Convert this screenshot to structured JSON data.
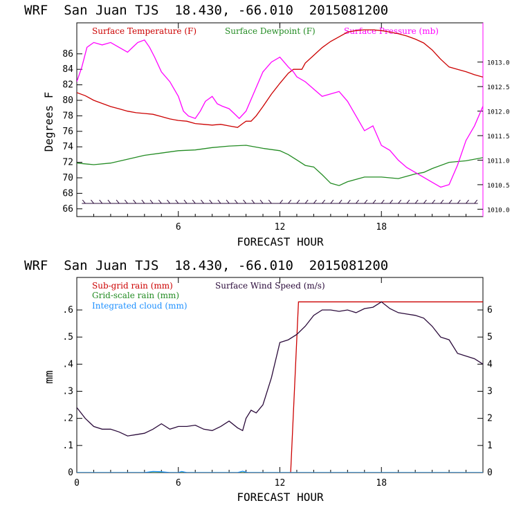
{
  "chart_data": [
    {
      "type": "line",
      "title": "WRF  San Juan TJS  18.430, -66.010  2015081200",
      "xlabel": "FORECAST HOUR",
      "ylabel": "Degrees F",
      "xlim": [
        0,
        24
      ],
      "ylim": [
        65,
        90
      ],
      "y2lim": [
        1009.85,
        1013.8
      ],
      "xticks": [
        6,
        12,
        18
      ],
      "xtick_labels": [
        "6",
        "12",
        "18"
      ],
      "yticks": [
        66,
        68,
        70,
        72,
        74,
        76,
        78,
        80,
        82,
        84,
        86
      ],
      "ytick_labels": [
        "66",
        "68",
        "70",
        "72",
        "74",
        "76",
        "78",
        "80",
        "82",
        "84",
        "86"
      ],
      "y2ticks": [
        1010.0,
        1010.5,
        1011.0,
        1011.5,
        1012.0,
        1012.5,
        1013.0
      ],
      "y2tick_labels": [
        "1010.0",
        "1010.5",
        "1011.0",
        "1011.5",
        "1012.0",
        "1012.5",
        "1013.0"
      ],
      "legend_placement": "top-left",
      "colors": {
        "temperature": "#cc0000",
        "dewpoint": "#228b22",
        "pressure": "#ff00ff",
        "wind_barbs": "#2a0a3a"
      },
      "wind_barbs": {
        "y": 66.7
      },
      "series": [
        {
          "name": "Surface Temperature (F)",
          "axis": "left",
          "color": "#cc0000",
          "x": [
            0,
            0.5,
            1,
            1.5,
            2,
            2.5,
            3,
            3.5,
            4,
            4.5,
            5,
            5.5,
            6,
            6.5,
            7,
            7.5,
            8,
            8.5,
            9,
            9.5,
            9.8,
            10,
            10.3,
            10.6,
            11,
            11.5,
            12,
            12.5,
            12.8,
            13,
            13.3,
            13.5,
            14,
            14.5,
            15,
            15.5,
            16,
            16.5,
            17,
            17.5,
            18,
            18.5,
            19,
            19.5,
            20,
            20.5,
            21,
            21.5,
            22,
            22.5,
            23,
            23.5,
            24
          ],
          "values": [
            81.0,
            80.6,
            80.0,
            79.6,
            79.2,
            78.9,
            78.6,
            78.4,
            78.3,
            78.2,
            77.9,
            77.6,
            77.4,
            77.3,
            77.0,
            76.9,
            76.8,
            76.9,
            76.7,
            76.5,
            77.0,
            77.3,
            77.3,
            78.0,
            79.2,
            80.8,
            82.2,
            83.5,
            84.0,
            84.0,
            84.0,
            84.8,
            85.8,
            86.8,
            87.6,
            88.2,
            88.8,
            89.0,
            89.1,
            89.1,
            89.0,
            88.8,
            88.6,
            88.3,
            87.9,
            87.4,
            86.5,
            85.3,
            84.3,
            84.0,
            83.7,
            83.3,
            83.0
          ]
        },
        {
          "name": "Surface Dewpoint (F)",
          "axis": "left",
          "color": "#228b22",
          "x": [
            0,
            1,
            2,
            3,
            4,
            5,
            6,
            7,
            8,
            9,
            10,
            11,
            12,
            12.5,
            13,
            13.5,
            14,
            14.5,
            15,
            15.5,
            16,
            17,
            18,
            19,
            20,
            20.5,
            21,
            22,
            23,
            24
          ],
          "values": [
            71.9,
            71.7,
            71.9,
            72.4,
            72.9,
            73.2,
            73.5,
            73.6,
            73.9,
            74.1,
            74.2,
            73.8,
            73.5,
            73.0,
            72.3,
            71.6,
            71.4,
            70.4,
            69.3,
            69.0,
            69.5,
            70.1,
            70.1,
            69.9,
            70.5,
            70.7,
            71.2,
            72.0,
            72.2,
            72.6
          ]
        },
        {
          "name": "Surface Pressure (mb)",
          "axis": "right",
          "color": "#ff00ff",
          "x": [
            0,
            0.3,
            0.6,
            1,
            1.5,
            2,
            2.5,
            3,
            3.3,
            3.6,
            4,
            4.3,
            4.6,
            5,
            5.5,
            6,
            6.3,
            6.6,
            7,
            7.3,
            7.6,
            8,
            8.3,
            8.6,
            9,
            9.3,
            9.6,
            10,
            10.5,
            11,
            11.5,
            12,
            12.5,
            12.8,
            13,
            13.5,
            14,
            14.5,
            15,
            15.5,
            16,
            16.5,
            17,
            17.5,
            18,
            18.5,
            19,
            19.5,
            20,
            20.5,
            21,
            21.5,
            22,
            22.5,
            23,
            23.5,
            24
          ],
          "values": [
            1012.6,
            1012.9,
            1013.3,
            1013.4,
            1013.35,
            1013.4,
            1013.3,
            1013.2,
            1013.3,
            1013.4,
            1013.45,
            1013.3,
            1013.1,
            1012.8,
            1012.6,
            1012.3,
            1012.0,
            1011.9,
            1011.85,
            1012.0,
            1012.2,
            1012.3,
            1012.15,
            1012.1,
            1012.05,
            1011.95,
            1011.85,
            1012.0,
            1012.4,
            1012.8,
            1013.0,
            1013.1,
            1012.9,
            1012.8,
            1012.7,
            1012.6,
            1012.45,
            1012.3,
            1012.35,
            1012.4,
            1012.2,
            1011.9,
            1011.6,
            1011.7,
            1011.3,
            1011.2,
            1011.0,
            1010.85,
            1010.75,
            1010.65,
            1010.55,
            1010.45,
            1010.5,
            1010.9,
            1011.4,
            1011.7,
            1012.1
          ]
        }
      ]
    },
    {
      "type": "line",
      "title": "WRF  San Juan TJS  18.430, -66.010  2015081200",
      "xlabel": "FORECAST HOUR",
      "ylabel": "mm",
      "xlim": [
        0,
        24
      ],
      "ylim": [
        0,
        0.72
      ],
      "y2lim": [
        0,
        7.2
      ],
      "xticks": [
        0,
        6,
        12,
        18
      ],
      "xtick_labels": [
        "0",
        "6",
        "12",
        "18"
      ],
      "yticks": [
        0,
        0.1,
        0.2,
        0.3,
        0.4,
        0.5,
        0.6
      ],
      "ytick_labels": [
        "0",
        ".1",
        ".2",
        ".3",
        ".4",
        ".5",
        ".6"
      ],
      "y2ticks": [
        0,
        1,
        2,
        3,
        4,
        5,
        6
      ],
      "y2tick_labels": [
        "0",
        "1",
        "2",
        "3",
        "4",
        "5",
        "6"
      ],
      "legend_placement": "top-left",
      "colors": {
        "subgrid": "#cc0000",
        "gridscale": "#228b22",
        "cloud": "#1e90ff",
        "wind": "#2a0a3a"
      },
      "series": [
        {
          "name": "Sub-grid rain (mm)",
          "axis": "left",
          "color": "#cc0000",
          "x": [
            12.6,
            13.1,
            24
          ],
          "values": [
            -0.05,
            0.63,
            0.63
          ]
        },
        {
          "name": "Grid-scale rain (mm)",
          "axis": "left",
          "color": "#228b22",
          "x": [
            0,
            24
          ],
          "values": [
            0,
            0
          ]
        },
        {
          "name": "Integrated cloud (mm)",
          "axis": "left",
          "color": "#1e90ff",
          "x": [
            0,
            4,
            4.5,
            5,
            5.5,
            6,
            6.2,
            6.5,
            9.5,
            9.8,
            10.1,
            24
          ],
          "values": [
            0,
            0,
            0.004,
            0.003,
            0,
            0,
            0.004,
            0,
            0,
            0.005,
            0,
            0
          ]
        },
        {
          "name": "Surface Wind Speed (m/s)",
          "axis": "right",
          "color": "#2a0a3a",
          "x": [
            0,
            0.5,
            1,
            1.5,
            2,
            2.5,
            3,
            3.5,
            4,
            4.5,
            5,
            5.5,
            6,
            6.5,
            7,
            7.5,
            8,
            8.5,
            9,
            9.5,
            9.8,
            10,
            10.3,
            10.6,
            11,
            11.5,
            12,
            12.5,
            13,
            13.5,
            14,
            14.5,
            15,
            15.5,
            16,
            16.5,
            17,
            17.5,
            18,
            18.5,
            19,
            19.5,
            20,
            20.5,
            21,
            21.5,
            22,
            22.5,
            23,
            23.5,
            24
          ],
          "values": [
            2.4,
            2.0,
            1.7,
            1.6,
            1.6,
            1.5,
            1.35,
            1.4,
            1.45,
            1.6,
            1.8,
            1.6,
            1.7,
            1.7,
            1.75,
            1.6,
            1.55,
            1.7,
            1.9,
            1.65,
            1.55,
            2.0,
            2.3,
            2.2,
            2.5,
            3.5,
            4.8,
            4.9,
            5.1,
            5.4,
            5.8,
            6.0,
            6.0,
            5.95,
            6.0,
            5.9,
            6.05,
            6.1,
            6.3,
            6.05,
            5.9,
            5.85,
            5.8,
            5.7,
            5.4,
            5.0,
            4.9,
            4.4,
            4.3,
            4.2,
            4.0
          ]
        }
      ]
    }
  ]
}
